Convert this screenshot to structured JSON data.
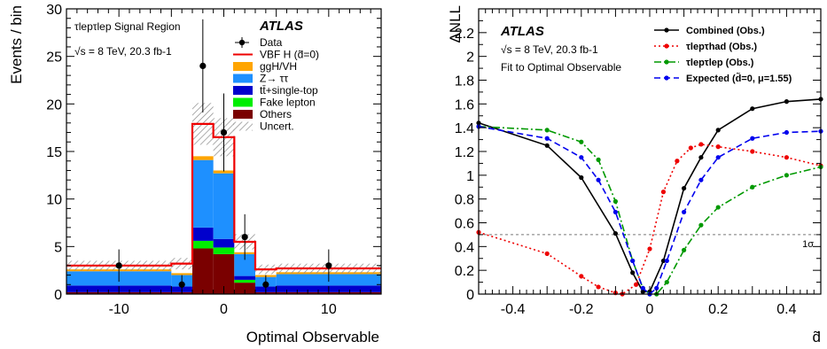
{
  "chart_data": [
    {
      "type": "bar",
      "stacked": true,
      "region_label": "τlepτlep Signal Region",
      "experiment": "ATLAS",
      "energy_label": "√s = 8 TeV, 20.3 fb-1",
      "xlabel": "Optimal Observable",
      "ylabel": "Events / bin",
      "xlim": [
        -15,
        15
      ],
      "ylim": [
        0,
        30
      ],
      "xticks": [
        -10,
        0,
        10
      ],
      "yticks": [
        0,
        5,
        10,
        15,
        20,
        25,
        30
      ],
      "bin_edges": [
        -15,
        -5,
        -3,
        -1,
        1,
        3,
        5,
        15
      ],
      "series": [
        {
          "name": "Others",
          "color": "#7a0000",
          "values": [
            0.2,
            0.2,
            4.8,
            4.2,
            1.2,
            0.2,
            0.2
          ]
        },
        {
          "name": "Fake lepton",
          "color": "#00ee00",
          "values": [
            0.0,
            0.0,
            0.8,
            0.7,
            0.3,
            0.0,
            0.0
          ]
        },
        {
          "name": "tt̄+single-top",
          "color": "#0000cc",
          "values": [
            0.7,
            0.6,
            1.4,
            0.9,
            0.4,
            0.6,
            0.7
          ]
        },
        {
          "name": "Z→ ττ",
          "color": "#1e90ff",
          "values": [
            1.5,
            1.2,
            7.1,
            6.9,
            2.3,
            1.0,
            1.2
          ]
        },
        {
          "name": "ggH/VH",
          "color": "#ffa500",
          "values": [
            0.2,
            0.2,
            0.4,
            0.3,
            0.2,
            0.2,
            0.2
          ]
        }
      ],
      "total_with_signal": [
        3.0,
        3.2,
        17.9,
        16.5,
        5.5,
        2.6,
        2.7
      ],
      "signal_name": "VBF H (d̃=0)",
      "signal_color": "#ee0000",
      "uncert_name": "Uncert.",
      "uncert_halfwidth": [
        0.5,
        0.6,
        2.2,
        2.0,
        0.8,
        0.5,
        0.5
      ],
      "data": {
        "name": "Data",
        "x": [
          -10,
          -4,
          -2,
          0,
          2,
          4,
          10
        ],
        "y": [
          3,
          1,
          24,
          17,
          6,
          1,
          3
        ],
        "err": [
          1.7,
          1.0,
          4.9,
          4.1,
          2.4,
          1.0,
          1.7
        ]
      }
    },
    {
      "type": "line",
      "experiment": "ATLAS",
      "energy_label": "√s = 8 TeV, 20.3 fb-1",
      "fit_label": "Fit to Optimal Observable",
      "xlabel": "d̃",
      "ylabel": "ΔNLL",
      "xlim": [
        -0.5,
        0.5
      ],
      "ylim": [
        0,
        2.4
      ],
      "xticks": [
        -0.4,
        -0.2,
        0,
        0.2,
        0.4
      ],
      "yticks": [
        0,
        0.2,
        0.4,
        0.6,
        0.8,
        1,
        1.2,
        1.4,
        1.6,
        1.8,
        2,
        2.2
      ],
      "reference_line": {
        "y": 0.5,
        "label": "1σ"
      },
      "series": [
        {
          "name": "Combined (Obs.)",
          "color": "#000000",
          "style": "solid",
          "x": [
            -0.5,
            -0.3,
            -0.2,
            -0.1,
            -0.05,
            -0.02,
            0,
            0.04,
            0.1,
            0.15,
            0.2,
            0.3,
            0.4,
            0.5
          ],
          "y": [
            1.44,
            1.25,
            0.98,
            0.51,
            0.18,
            0.02,
            0.02,
            0.28,
            0.89,
            1.15,
            1.38,
            1.56,
            1.62,
            1.64
          ]
        },
        {
          "name": "τlepτhad (Obs.)",
          "color": "#ee0000",
          "style": "dotted",
          "x": [
            -0.5,
            -0.3,
            -0.2,
            -0.15,
            -0.1,
            -0.08,
            -0.04,
            0,
            0.04,
            0.08,
            0.12,
            0.15,
            0.2,
            0.3,
            0.4,
            0.5
          ],
          "y": [
            0.52,
            0.34,
            0.15,
            0.06,
            0.01,
            0.0,
            0.08,
            0.38,
            0.86,
            1.12,
            1.23,
            1.26,
            1.24,
            1.2,
            1.15,
            1.08
          ]
        },
        {
          "name": "τlepτlep (Obs.)",
          "color": "#009900",
          "style": "dashdot",
          "x": [
            -0.5,
            -0.3,
            -0.2,
            -0.15,
            -0.1,
            -0.05,
            -0.02,
            0,
            0.02,
            0.05,
            0.1,
            0.15,
            0.2,
            0.3,
            0.4,
            0.5
          ],
          "y": [
            1.41,
            1.38,
            1.28,
            1.13,
            0.78,
            0.28,
            0.05,
            0.0,
            0.0,
            0.1,
            0.37,
            0.58,
            0.73,
            0.9,
            1.0,
            1.07
          ]
        },
        {
          "name": "Expected (d̃=0, μ=1.55)",
          "color": "#0000ee",
          "style": "dashed",
          "x": [
            -0.5,
            -0.3,
            -0.2,
            -0.15,
            -0.1,
            -0.05,
            -0.02,
            0,
            0.02,
            0.05,
            0.1,
            0.15,
            0.2,
            0.3,
            0.4,
            0.5
          ],
          "y": [
            1.41,
            1.31,
            1.15,
            0.96,
            0.69,
            0.28,
            0.05,
            0.0,
            0.05,
            0.28,
            0.69,
            0.96,
            1.15,
            1.31,
            1.36,
            1.37
          ]
        }
      ]
    }
  ]
}
